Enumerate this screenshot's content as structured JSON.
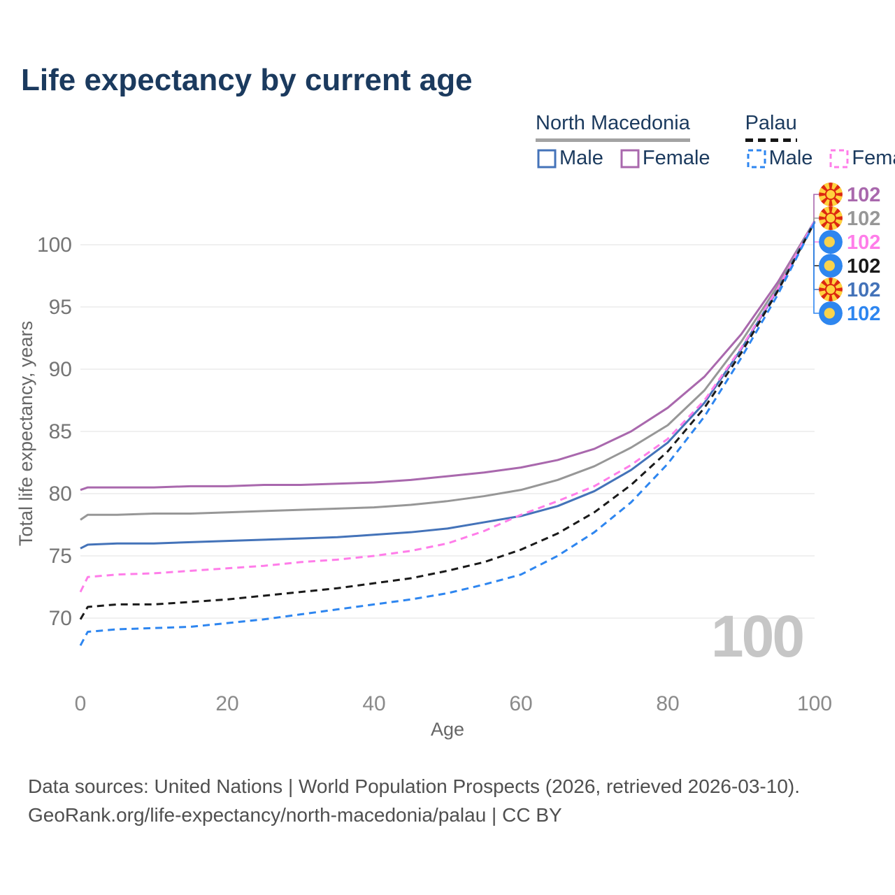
{
  "title": "Life expectancy by current age",
  "legend": {
    "groups": [
      {
        "country": "North Macedonia",
        "series_id": "nm-both",
        "items": [
          {
            "label": "Male",
            "series_id": "nm-male"
          },
          {
            "label": "Female",
            "series_id": "nm-female"
          }
        ]
      },
      {
        "country": "Palau",
        "series_id": "pw-both",
        "items": [
          {
            "label": "Male",
            "series_id": "pw-male"
          },
          {
            "label": "Female",
            "series_id": "pw-female"
          }
        ]
      }
    ]
  },
  "chart_data": {
    "type": "line",
    "title": "Life expectancy by current age",
    "xlabel": "Age",
    "ylabel": "Total life expectancy, years",
    "xlim": [
      0,
      100
    ],
    "ylim": [
      67,
      103
    ],
    "xticks": [
      0,
      20,
      40,
      60,
      80,
      100
    ],
    "yticks": [
      70,
      75,
      80,
      85,
      90,
      95,
      100
    ],
    "grid": "horizontal",
    "legend_position": "top-right",
    "watermark": "100",
    "ages": [
      0,
      1,
      5,
      10,
      15,
      20,
      25,
      30,
      35,
      40,
      45,
      50,
      55,
      60,
      65,
      70,
      75,
      80,
      85,
      90,
      95,
      100
    ],
    "series": [
      {
        "id": "nm-female",
        "name": "North Macedonia Female",
        "color": "#a968ad",
        "style": "solid",
        "flag": "north-macedonia",
        "end_label": "102",
        "end_row": 0,
        "values": [
          80.3,
          80.5,
          80.5,
          80.5,
          80.6,
          80.6,
          80.7,
          80.7,
          80.8,
          80.9,
          81.1,
          81.4,
          81.7,
          82.1,
          82.7,
          83.6,
          85.0,
          86.9,
          89.4,
          92.8,
          97.0,
          101.9
        ]
      },
      {
        "id": "nm-both",
        "name": "North Macedonia",
        "color": "#979797",
        "style": "solid",
        "flag": "north-macedonia",
        "end_label": "102",
        "end_row": 1,
        "values": [
          77.9,
          78.3,
          78.3,
          78.4,
          78.4,
          78.5,
          78.6,
          78.7,
          78.8,
          78.9,
          79.1,
          79.4,
          79.8,
          80.3,
          81.1,
          82.2,
          83.7,
          85.5,
          88.3,
          92.2,
          96.7,
          101.9
        ]
      },
      {
        "id": "nm-male",
        "name": "North Macedonia Male",
        "color": "#4473b9",
        "style": "solid",
        "flag": "north-macedonia",
        "end_label": "102",
        "end_row": 4,
        "values": [
          75.6,
          75.9,
          76.0,
          76.0,
          76.1,
          76.2,
          76.3,
          76.4,
          76.5,
          76.7,
          76.9,
          77.2,
          77.7,
          78.2,
          79.0,
          80.2,
          81.9,
          84.1,
          87.3,
          91.6,
          96.4,
          101.9
        ]
      },
      {
        "id": "pw-female",
        "name": "Palau Female",
        "color": "#ff7de9",
        "style": "dashed",
        "flag": "palau",
        "end_label": "102",
        "end_row": 2,
        "values": [
          72.1,
          73.3,
          73.5,
          73.6,
          73.8,
          74.0,
          74.2,
          74.5,
          74.7,
          75.0,
          75.4,
          76.0,
          77.0,
          78.3,
          79.4,
          80.6,
          82.3,
          84.4,
          87.5,
          91.7,
          96.5,
          101.9
        ]
      },
      {
        "id": "pw-both",
        "name": "Palau",
        "color": "#1a1a1a",
        "style": "dashed",
        "flag": "palau",
        "end_label": "102",
        "end_row": 3,
        "values": [
          69.9,
          70.9,
          71.1,
          71.1,
          71.3,
          71.5,
          71.8,
          72.1,
          72.4,
          72.8,
          73.2,
          73.8,
          74.5,
          75.5,
          76.8,
          78.5,
          80.7,
          83.4,
          86.9,
          91.3,
          96.3,
          101.8
        ]
      },
      {
        "id": "pw-male",
        "name": "Palau Male",
        "color": "#2e86f0",
        "style": "dashed",
        "flag": "palau",
        "end_label": "102",
        "end_row": 5,
        "values": [
          67.8,
          68.9,
          69.1,
          69.2,
          69.3,
          69.6,
          69.9,
          70.3,
          70.7,
          71.1,
          71.5,
          72.0,
          72.7,
          73.5,
          75.0,
          76.9,
          79.3,
          82.4,
          86.2,
          90.9,
          96.0,
          101.8
        ]
      }
    ]
  },
  "footer": {
    "line1": "Data sources: United Nations | World Population Prospects (2026, retrieved 2026-03-10).",
    "line2": "GeoRank.org/life-expectancy/north-macedonia/palau | CC BY"
  }
}
